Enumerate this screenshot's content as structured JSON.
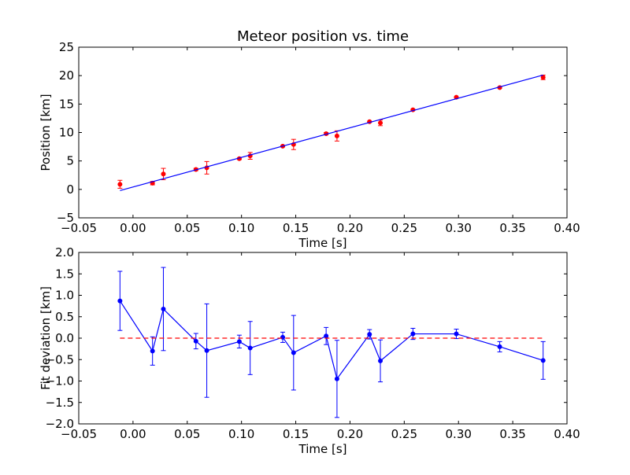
{
  "chart_data": [
    {
      "type": "scatter",
      "title": "Meteor position vs. time",
      "xlabel": "Time [s]",
      "ylabel": "Position [km]",
      "xlim": [
        -0.05,
        0.4
      ],
      "ylim": [
        -5,
        25
      ],
      "xticks": [
        "−0.05",
        "0.00",
        "0.05",
        "0.10",
        "0.15",
        "0.20",
        "0.25",
        "0.30",
        "0.35",
        "0.40"
      ],
      "yticks": [
        "−5",
        "0",
        "5",
        "10",
        "15",
        "20",
        "25"
      ],
      "grid": false,
      "series": [
        {
          "kind": "errorbar-points",
          "color": "#ff0000",
          "points": [
            {
              "x": -0.012,
              "y": 0.9,
              "err": 0.7
            },
            {
              "x": 0.018,
              "y": 1.1,
              "err": 0.3
            },
            {
              "x": 0.028,
              "y": 2.7,
              "err": 1.0
            },
            {
              "x": 0.058,
              "y": 3.5,
              "err": 0.2
            },
            {
              "x": 0.068,
              "y": 3.8,
              "err": 1.1
            },
            {
              "x": 0.098,
              "y": 5.4,
              "err": 0.15
            },
            {
              "x": 0.108,
              "y": 5.9,
              "err": 0.6
            },
            {
              "x": 0.138,
              "y": 7.6,
              "err": 0.1
            },
            {
              "x": 0.148,
              "y": 7.9,
              "err": 0.9
            },
            {
              "x": 0.178,
              "y": 9.8,
              "err": 0.2
            },
            {
              "x": 0.188,
              "y": 9.4,
              "err": 0.9
            },
            {
              "x": 0.218,
              "y": 11.9,
              "err": 0.1
            },
            {
              "x": 0.228,
              "y": 11.7,
              "err": 0.5
            },
            {
              "x": 0.258,
              "y": 14.0,
              "err": 0.1
            },
            {
              "x": 0.298,
              "y": 16.2,
              "err": 0.1
            },
            {
              "x": 0.338,
              "y": 17.9,
              "err": 0.1
            },
            {
              "x": 0.378,
              "y": 19.7,
              "err": 0.4
            }
          ]
        },
        {
          "kind": "fit-line",
          "color": "#0000ff",
          "x": [
            -0.012,
            0.378
          ],
          "y": [
            -0.2,
            20.1
          ]
        }
      ]
    },
    {
      "type": "line",
      "title": "",
      "xlabel": "Time [s]",
      "ylabel": "Fit deviation [km]",
      "xlim": [
        -0.05,
        0.4
      ],
      "ylim": [
        -2.0,
        2.0
      ],
      "xticks": [
        "−0.05",
        "0.00",
        "0.05",
        "0.10",
        "0.15",
        "0.20",
        "0.25",
        "0.30",
        "0.35",
        "0.40"
      ],
      "yticks": [
        "−2.0",
        "−1.5",
        "−1.0",
        "−0.5",
        "0.0",
        "0.5",
        "1.0",
        "1.5",
        "2.0"
      ],
      "grid": false,
      "series": [
        {
          "kind": "errorbar-line",
          "color": "#0000ff",
          "points": [
            {
              "x": -0.012,
              "y": 0.87,
              "err": 0.69
            },
            {
              "x": 0.018,
              "y": -0.3,
              "err": 0.33
            },
            {
              "x": 0.028,
              "y": 0.68,
              "err": 0.97
            },
            {
              "x": 0.058,
              "y": -0.07,
              "err": 0.18
            },
            {
              "x": 0.068,
              "y": -0.29,
              "err": 1.09
            },
            {
              "x": 0.098,
              "y": -0.08,
              "err": 0.15
            },
            {
              "x": 0.108,
              "y": -0.23,
              "err": 0.62
            },
            {
              "x": 0.138,
              "y": 0.02,
              "err": 0.12
            },
            {
              "x": 0.148,
              "y": -0.34,
              "err": 0.87
            },
            {
              "x": 0.178,
              "y": 0.05,
              "err": 0.2
            },
            {
              "x": 0.188,
              "y": -0.95,
              "err": 0.9
            },
            {
              "x": 0.218,
              "y": 0.09,
              "err": 0.11
            },
            {
              "x": 0.228,
              "y": -0.53,
              "err": 0.49
            },
            {
              "x": 0.258,
              "y": 0.1,
              "err": 0.13
            },
            {
              "x": 0.298,
              "y": 0.1,
              "err": 0.11
            },
            {
              "x": 0.338,
              "y": -0.2,
              "err": 0.12
            },
            {
              "x": 0.378,
              "y": -0.52,
              "err": 0.44
            }
          ]
        },
        {
          "kind": "zero-line",
          "color": "#ff0000",
          "dashed": true,
          "x": [
            -0.012,
            0.378
          ],
          "y": [
            0,
            0
          ]
        }
      ]
    }
  ]
}
